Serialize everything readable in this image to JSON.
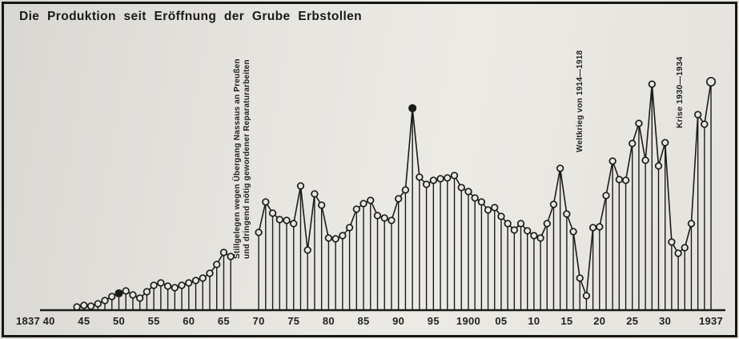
{
  "title": "Die Produktion seit Eröffnung der Grube Erbstollen",
  "colors": {
    "paper": "#e4e2dc",
    "ink": "#1b1b1b",
    "frame": "#161616"
  },
  "chart_data": {
    "type": "lollipop-line",
    "title": "Die Produktion seit Eröffnung der Grube Erbstollen",
    "xlabel": "",
    "ylabel": "",
    "unit": "relative production height (no y-axis scale printed)",
    "x_range": [
      1837,
      1937
    ],
    "grid": false,
    "legend": "none",
    "gap_years": [
      1867,
      1868,
      1869
    ],
    "x_ticks": [
      {
        "label": "1837",
        "year": 1837
      },
      {
        "label": "40",
        "year": 1840
      },
      {
        "label": "45",
        "year": 1845
      },
      {
        "label": "50",
        "year": 1850
      },
      {
        "label": "55",
        "year": 1855
      },
      {
        "label": "60",
        "year": 1860
      },
      {
        "label": "65",
        "year": 1865
      },
      {
        "label": "70",
        "year": 1870
      },
      {
        "label": "75",
        "year": 1875
      },
      {
        "label": "80",
        "year": 1880
      },
      {
        "label": "85",
        "year": 1885
      },
      {
        "label": "90",
        "year": 1890
      },
      {
        "label": "95",
        "year": 1895
      },
      {
        "label": "1900",
        "year": 1900
      },
      {
        "label": "05",
        "year": 1905
      },
      {
        "label": "10",
        "year": 1910
      },
      {
        "label": "15",
        "year": 1915
      },
      {
        "label": "20",
        "year": 1920
      },
      {
        "label": "25",
        "year": 1925
      },
      {
        "label": "30",
        "year": 1930
      },
      {
        "label": "1937",
        "year": 1937
      }
    ],
    "filled_points": [
      1850,
      1892
    ],
    "big_points": [
      1937
    ],
    "points": [
      [
        1844,
        4
      ],
      [
        1845,
        6
      ],
      [
        1846,
        5
      ],
      [
        1847,
        8
      ],
      [
        1848,
        12
      ],
      [
        1849,
        17
      ],
      [
        1850,
        21
      ],
      [
        1851,
        24
      ],
      [
        1852,
        19
      ],
      [
        1853,
        15
      ],
      [
        1854,
        23
      ],
      [
        1855,
        31
      ],
      [
        1856,
        34
      ],
      [
        1857,
        30
      ],
      [
        1858,
        28
      ],
      [
        1859,
        31
      ],
      [
        1860,
        34
      ],
      [
        1861,
        37
      ],
      [
        1862,
        40
      ],
      [
        1863,
        46
      ],
      [
        1864,
        57
      ],
      [
        1865,
        72
      ],
      [
        1866,
        67
      ],
      [
        1870,
        97
      ],
      [
        1871,
        135
      ],
      [
        1872,
        121
      ],
      [
        1873,
        113
      ],
      [
        1874,
        112
      ],
      [
        1875,
        108
      ],
      [
        1876,
        155
      ],
      [
        1877,
        75
      ],
      [
        1878,
        145
      ],
      [
        1879,
        131
      ],
      [
        1880,
        90
      ],
      [
        1881,
        89
      ],
      [
        1882,
        93
      ],
      [
        1883,
        103
      ],
      [
        1884,
        126
      ],
      [
        1885,
        133
      ],
      [
        1886,
        137
      ],
      [
        1887,
        118
      ],
      [
        1888,
        115
      ],
      [
        1889,
        112
      ],
      [
        1890,
        139
      ],
      [
        1891,
        150
      ],
      [
        1892,
        252
      ],
      [
        1893,
        166
      ],
      [
        1894,
        157
      ],
      [
        1895,
        162
      ],
      [
        1896,
        164
      ],
      [
        1897,
        165
      ],
      [
        1898,
        168
      ],
      [
        1899,
        153
      ],
      [
        1900,
        148
      ],
      [
        1901,
        140
      ],
      [
        1902,
        135
      ],
      [
        1903,
        125
      ],
      [
        1904,
        128
      ],
      [
        1905,
        117
      ],
      [
        1906,
        108
      ],
      [
        1907,
        100
      ],
      [
        1908,
        108
      ],
      [
        1909,
        99
      ],
      [
        1910,
        93
      ],
      [
        1911,
        90
      ],
      [
        1912,
        108
      ],
      [
        1913,
        132
      ],
      [
        1914,
        177
      ],
      [
        1915,
        120
      ],
      [
        1916,
        98
      ],
      [
        1917,
        40
      ],
      [
        1918,
        18
      ],
      [
        1919,
        103
      ],
      [
        1920,
        104
      ],
      [
        1921,
        143
      ],
      [
        1922,
        186
      ],
      [
        1923,
        163
      ],
      [
        1924,
        162
      ],
      [
        1925,
        208
      ],
      [
        1926,
        233
      ],
      [
        1927,
        187
      ],
      [
        1928,
        282
      ],
      [
        1929,
        180
      ],
      [
        1930,
        209
      ],
      [
        1931,
        85
      ],
      [
        1932,
        71
      ],
      [
        1933,
        78
      ],
      [
        1934,
        108
      ],
      [
        1935,
        244
      ],
      [
        1936,
        232
      ],
      [
        1937,
        285
      ]
    ],
    "annotations": [
      {
        "orientation": "vertical",
        "at_years": "1867–1869 gap",
        "line1": "Stillgelegen wegen Übergang Nassaus an Preußen",
        "line2": "und dringend nötig gewordener Reparaturarbeiten"
      },
      {
        "orientation": "vertical",
        "at_years": "1914–1918",
        "line1": "Weltkrieg von 1914—1918"
      },
      {
        "orientation": "vertical",
        "at_years": "1930–1934",
        "line1": "Krise 1930—1934"
      }
    ]
  }
}
